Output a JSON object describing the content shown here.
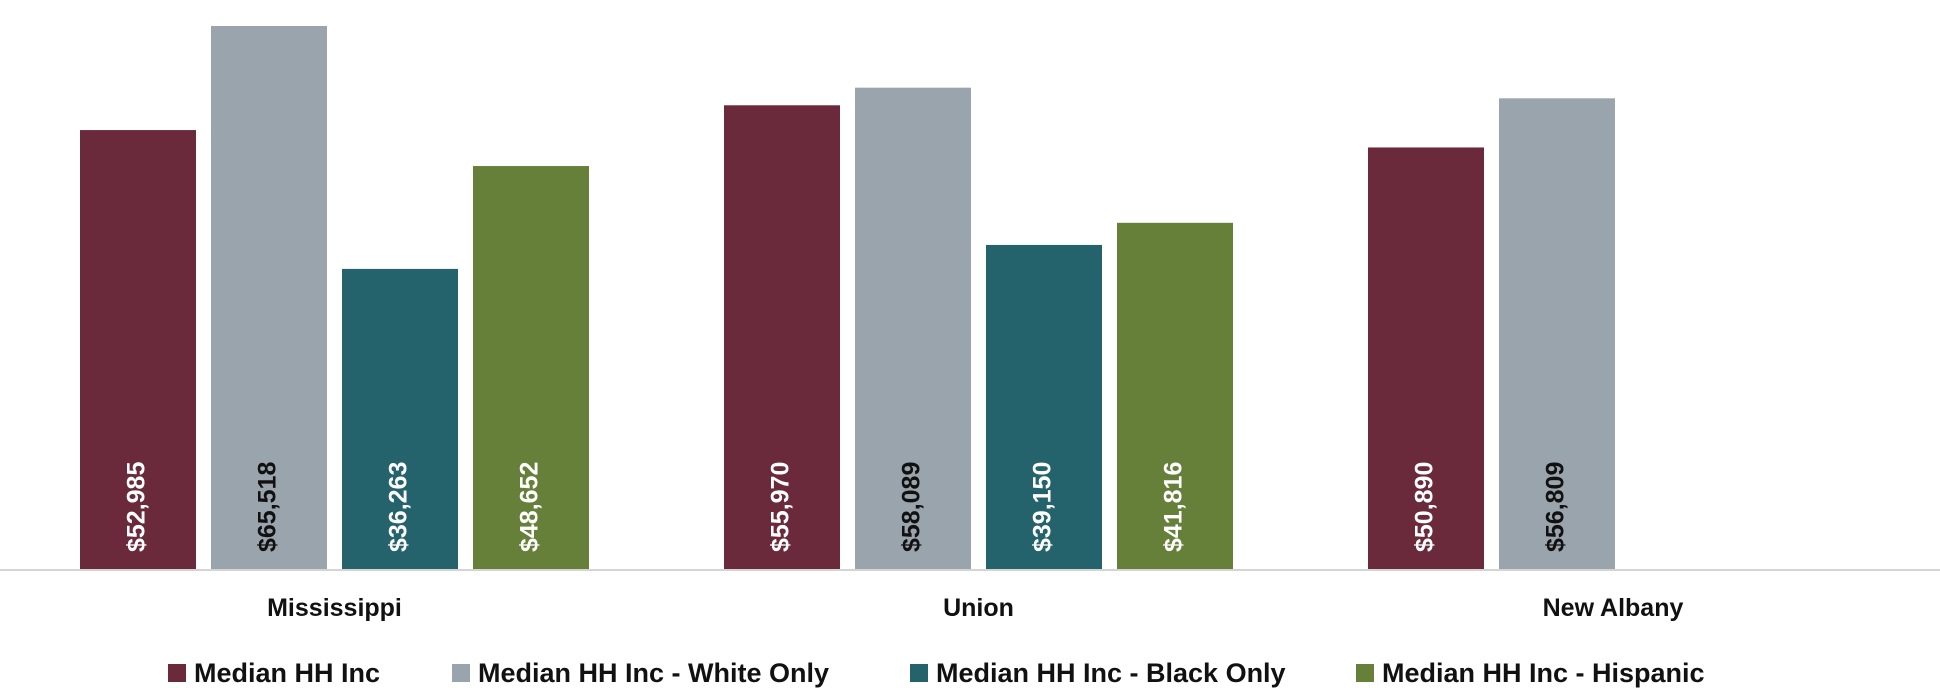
{
  "chart_data": {
    "type": "bar",
    "categories": [
      "Mississippi",
      "Union",
      "New Albany"
    ],
    "series": [
      {
        "name": "Median HH Inc",
        "color": "#6b2a3b",
        "label_color": "#ffffff",
        "values": [
          52985,
          55970,
          50890
        ],
        "labels": [
          "$52,985",
          "$55,970",
          "$50,890"
        ]
      },
      {
        "name": "Median HH Inc - White Only",
        "color": "#9aa4ad",
        "label_color": "#111111",
        "values": [
          65518,
          58089,
          56809
        ],
        "labels": [
          "$65,518",
          "$58,089",
          "$56,809"
        ]
      },
      {
        "name": "Median HH Inc - Black Only",
        "color": "#24636b",
        "label_color": "#ffffff",
        "values": [
          36263,
          39150,
          null
        ],
        "labels": [
          "$36,263",
          "$39,150",
          null
        ]
      },
      {
        "name": "Median HH Inc - Hispanic",
        "color": "#66803a",
        "label_color": "#ffffff",
        "values": [
          48652,
          41816,
          null
        ],
        "labels": [
          "$48,652",
          "$41,816",
          null
        ]
      }
    ],
    "ylim": [
      0,
      66000
    ],
    "grid": false,
    "legend_position": "bottom"
  }
}
